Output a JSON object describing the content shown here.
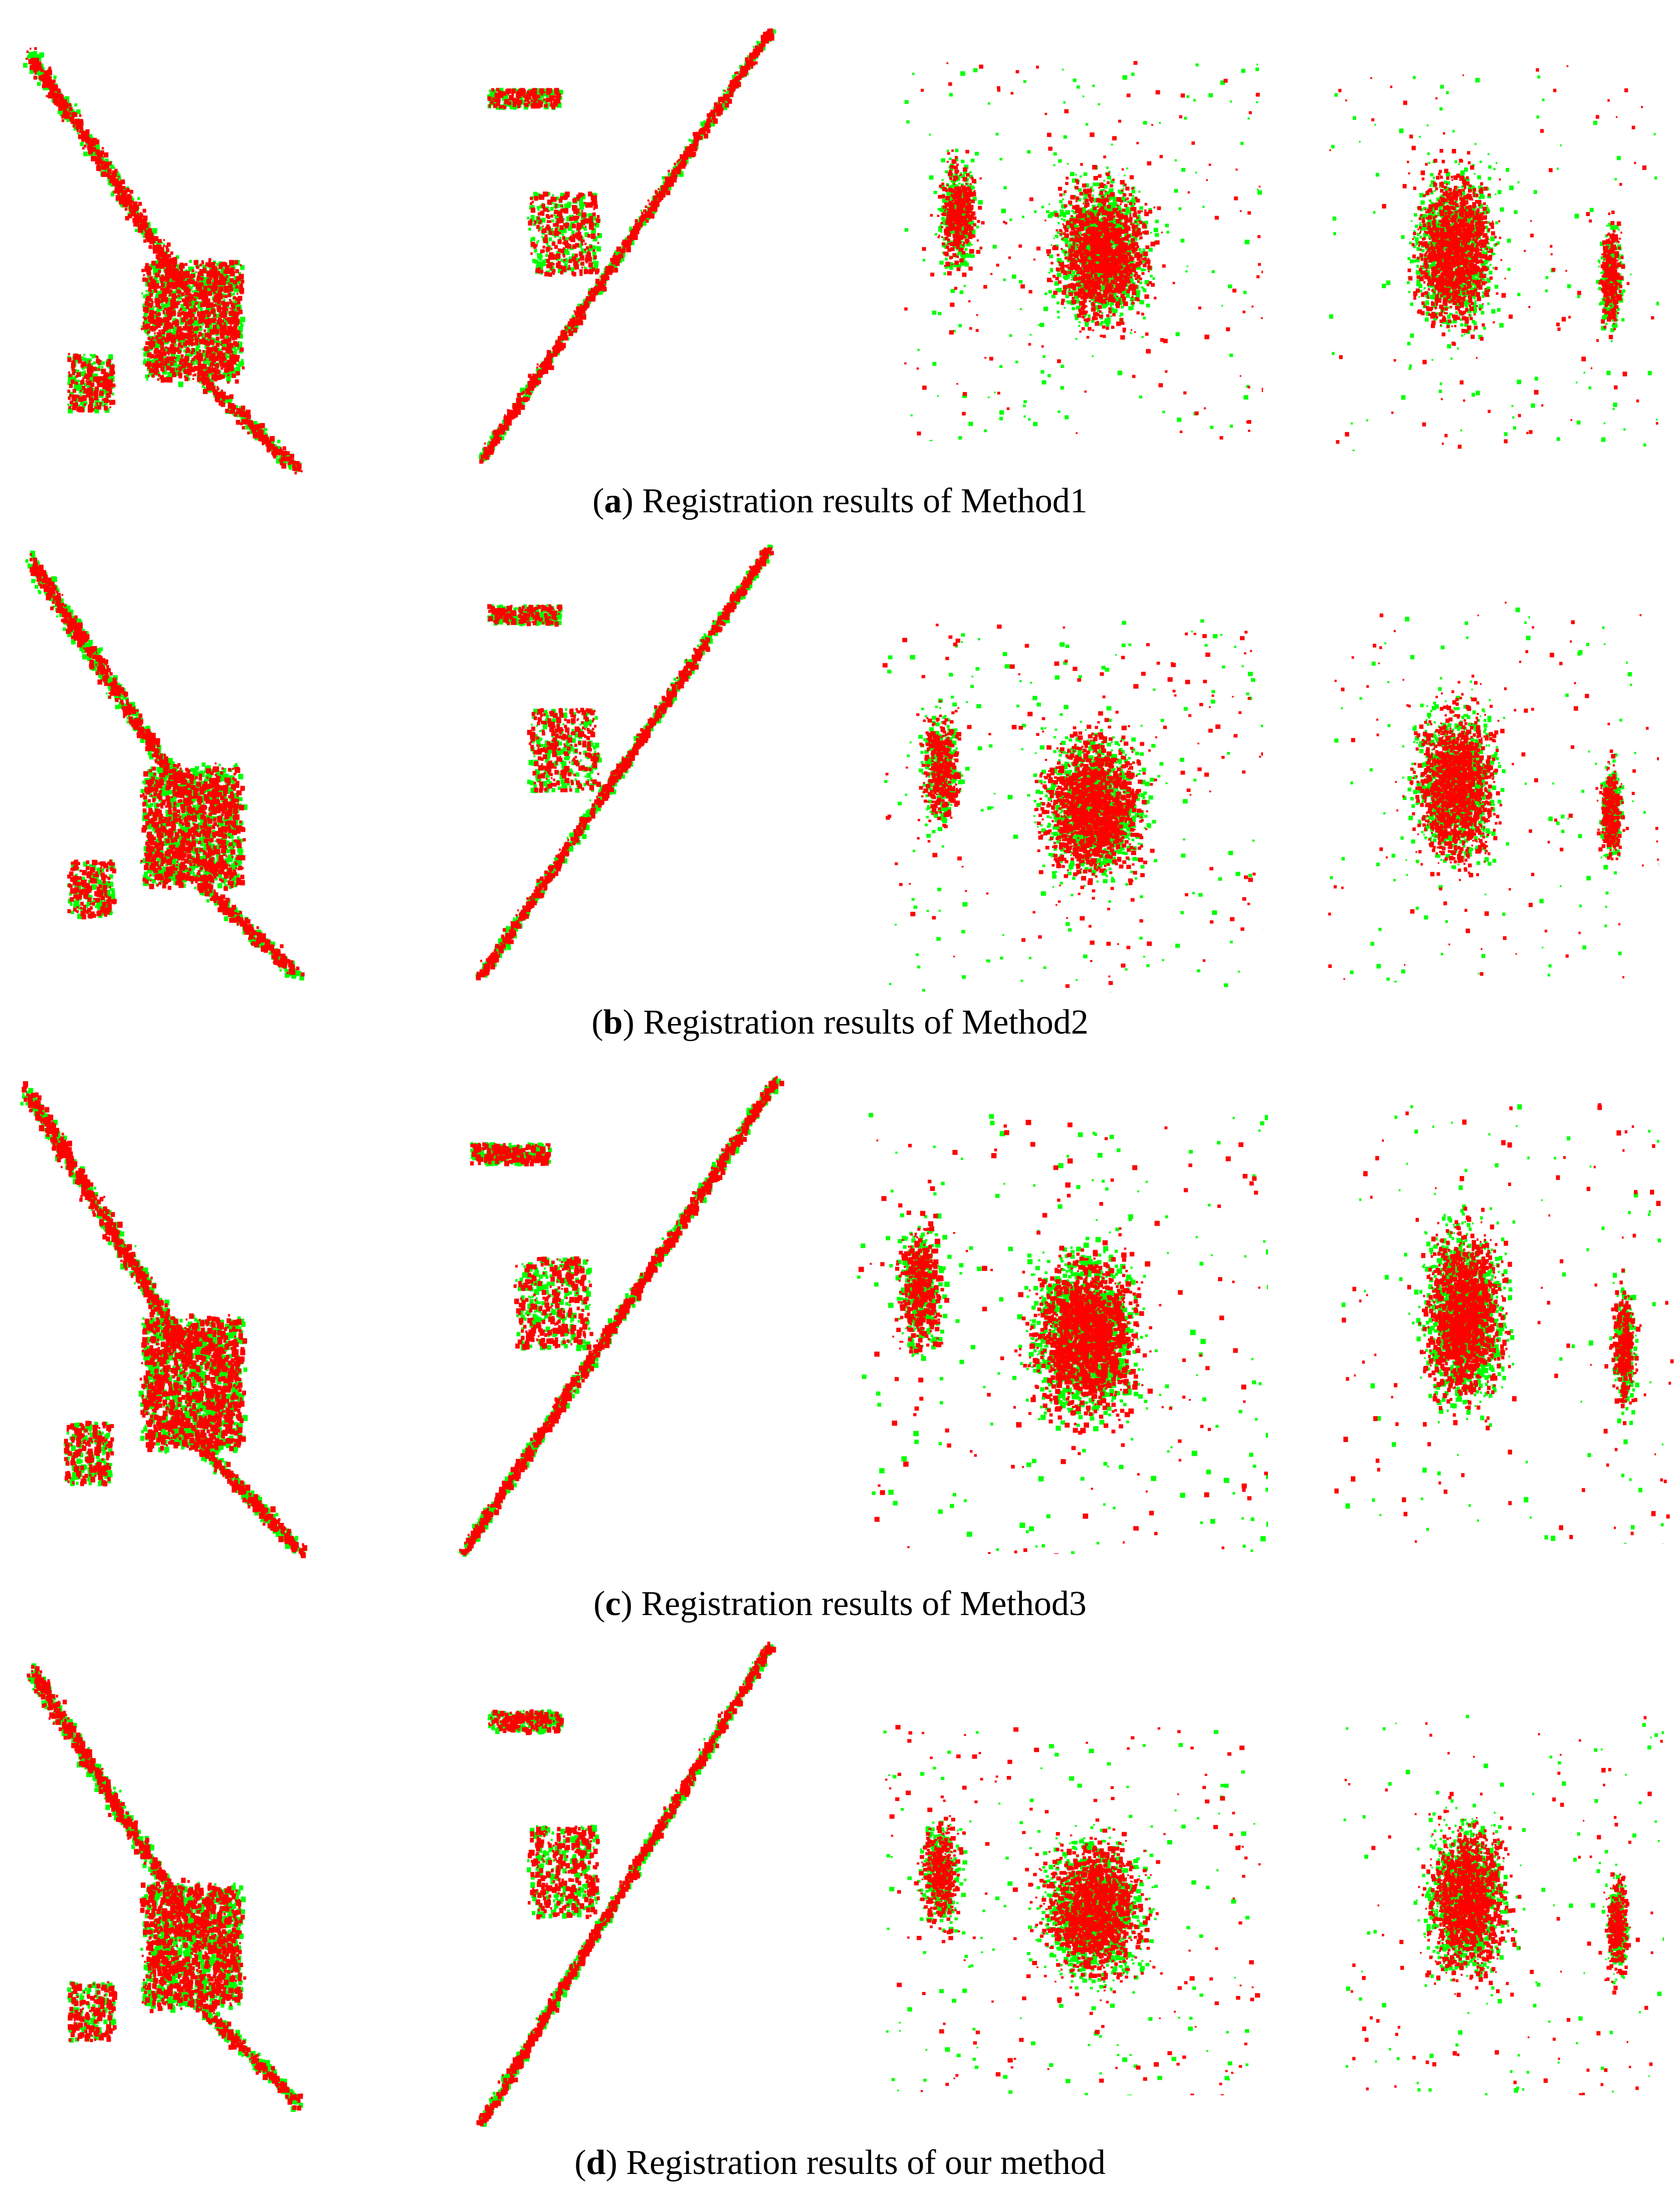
{
  "colors": {
    "source": "#ff0000",
    "target": "#00ff00",
    "background": "#ffffff"
  },
  "rows": [
    {
      "letter": "a",
      "text": "Registration results of Method1"
    },
    {
      "letter": "b",
      "text": "Registration results of Method2"
    },
    {
      "letter": "c",
      "text": "Registration results of Method3"
    },
    {
      "letter": "d",
      "text": "Registration results of our method"
    }
  ]
}
